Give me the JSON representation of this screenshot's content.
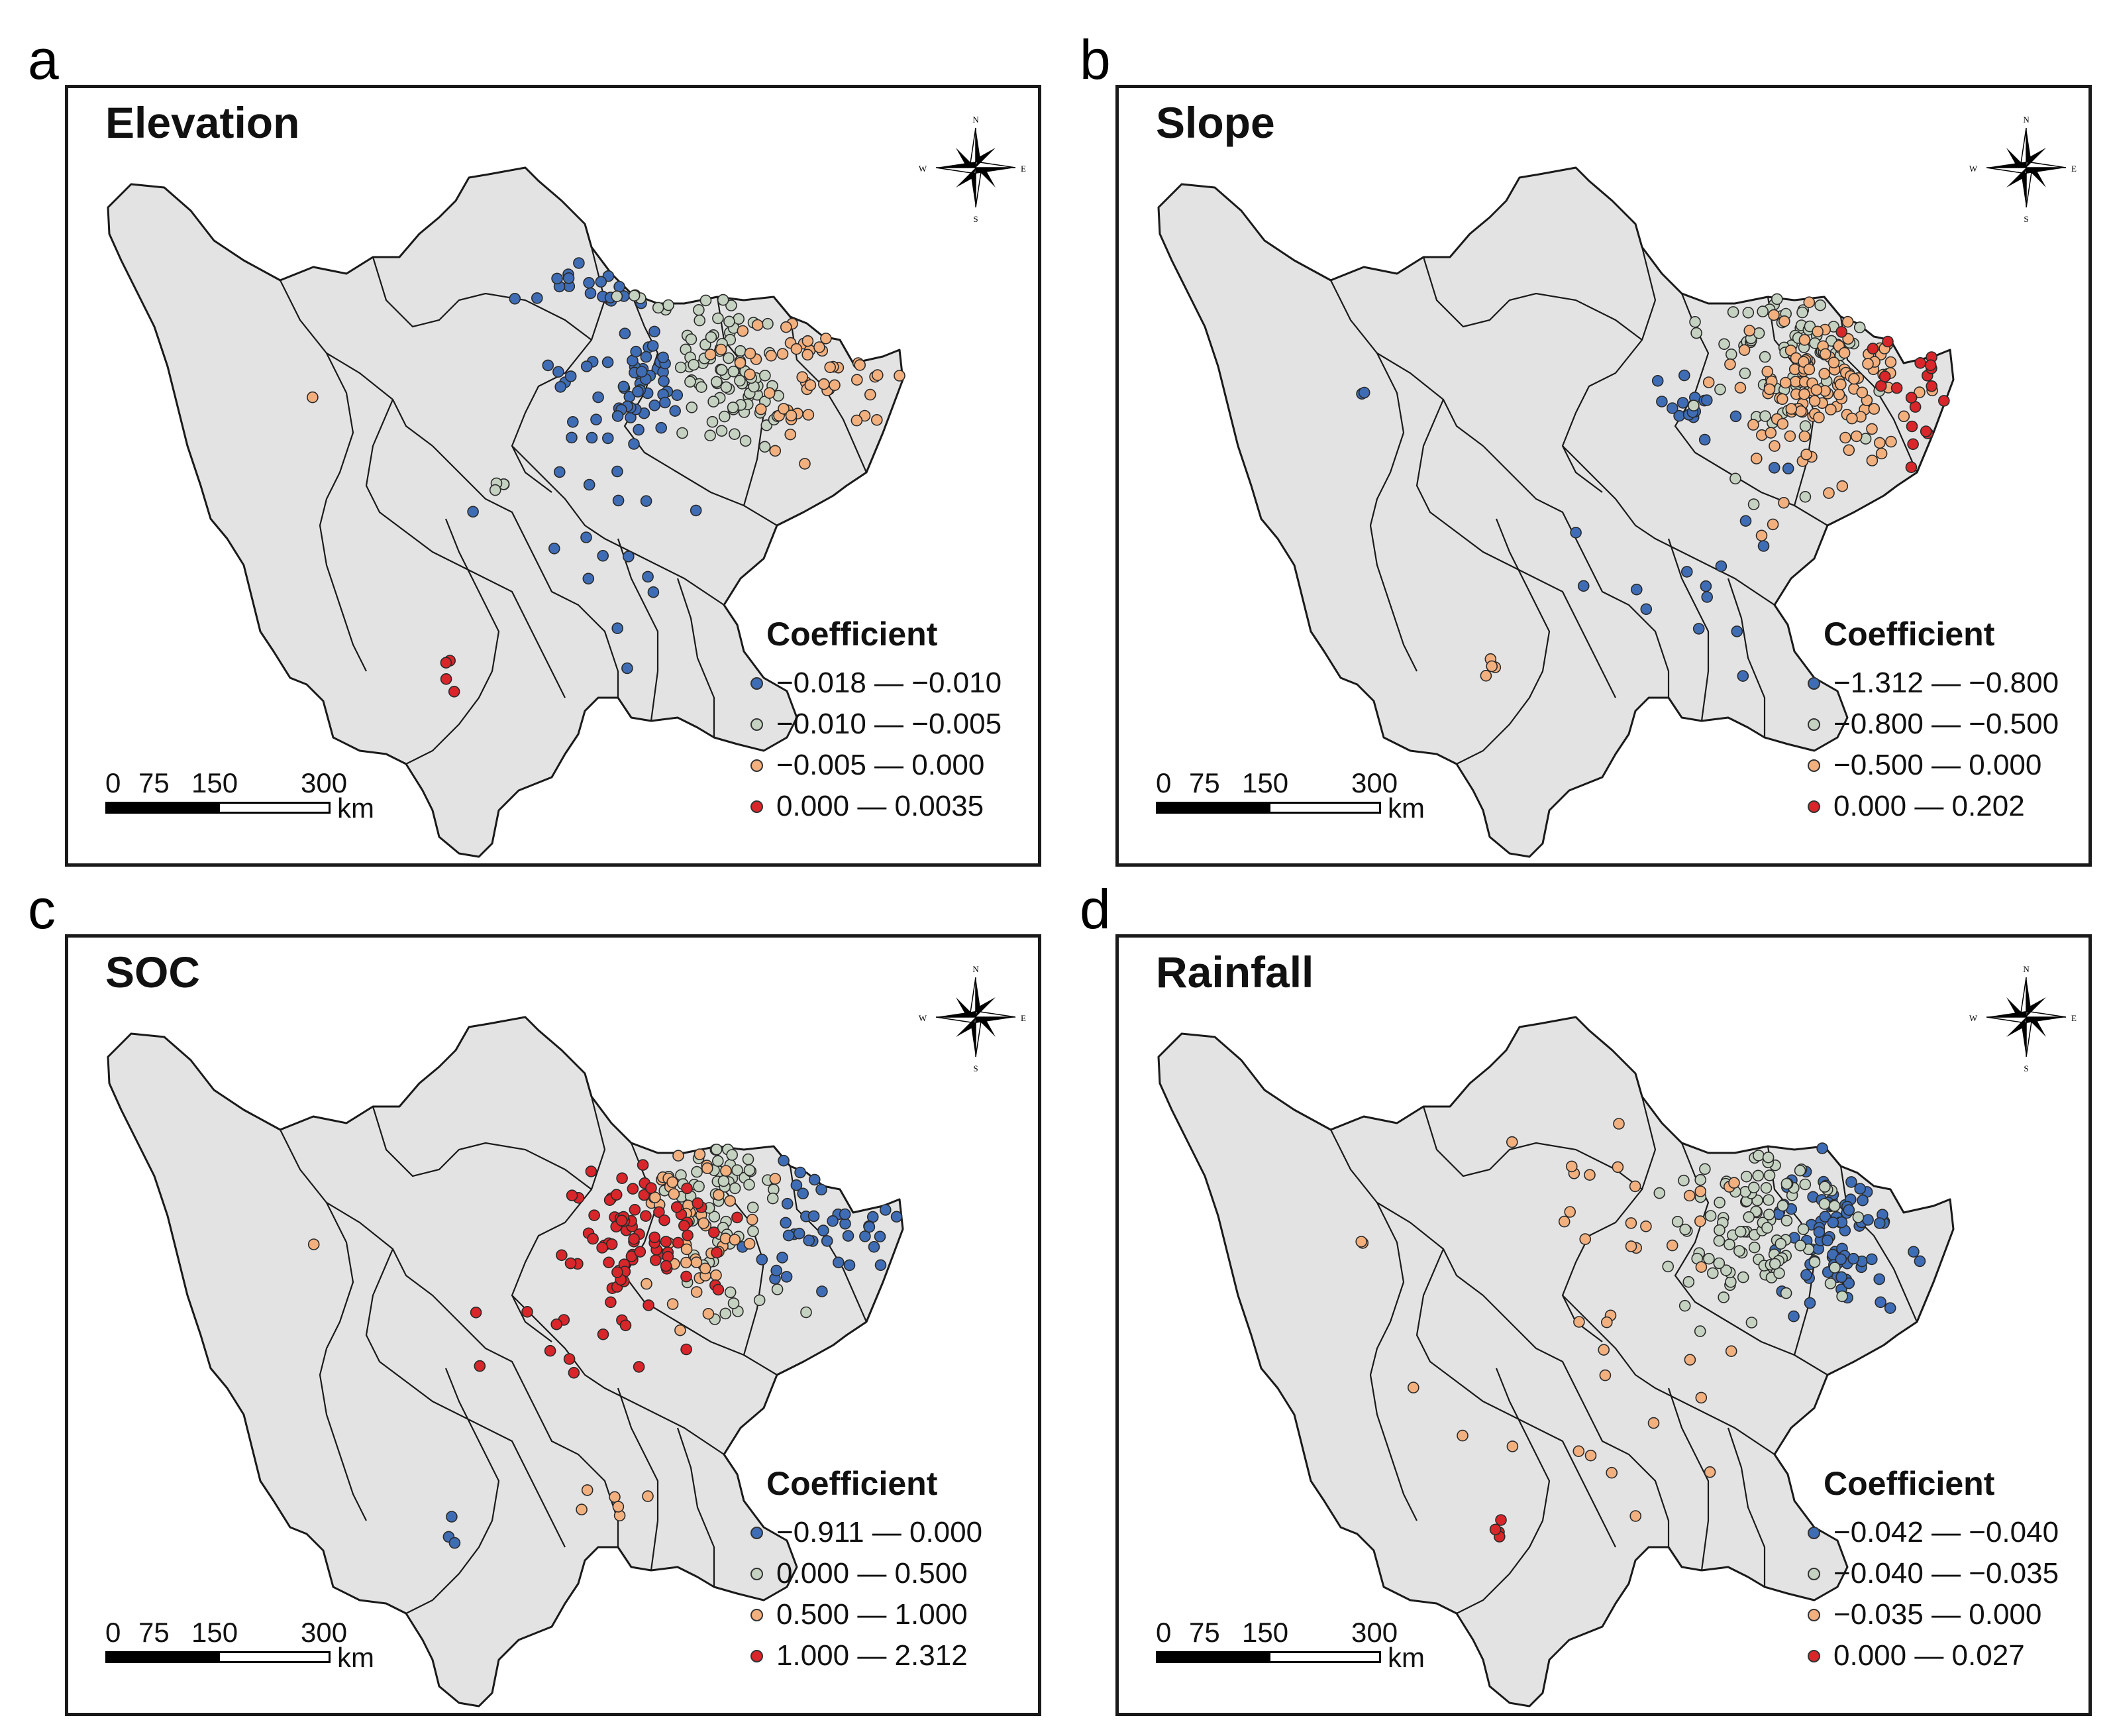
{
  "figure": {
    "panels": [
      {
        "letter": "a",
        "title": "Elevation",
        "legend_title": "Coefficient",
        "legend": [
          {
            "range": "−0.018 — −0.010",
            "color": "#3f6db5"
          },
          {
            "range": "−0.010 — −0.005",
            "color": "#c5d2c1"
          },
          {
            "range": "−0.005 — 0.000",
            "color": "#f3b07f"
          },
          {
            "range": "0.000 — 0.0035",
            "color": "#d8262a"
          }
        ],
        "class_counts": {
          "blue": 95,
          "green": 92,
          "orange": 55,
          "red": 4
        }
      },
      {
        "letter": "b",
        "title": "Slope",
        "legend_title": "Coefficient",
        "legend": [
          {
            "range": "−1.312 — −0.800",
            "color": "#3f6db5"
          },
          {
            "range": "−0.800 — −0.500",
            "color": "#c5d2c1"
          },
          {
            "range": "−0.500 — 0.000",
            "color": "#f3b07f"
          },
          {
            "range": "0.000 — 0.202",
            "color": "#d8262a"
          }
        ],
        "class_counts": {
          "blue": 30,
          "green": 70,
          "orange": 130,
          "red": 20
        }
      },
      {
        "letter": "c",
        "title": "SOC",
        "legend_title": "Coefficient",
        "legend": [
          {
            "range": "−0.911 — 0.000",
            "color": "#3f6db5"
          },
          {
            "range": "0.000 — 0.500",
            "color": "#c5d2c1"
          },
          {
            "range": "0.500 — 1.000",
            "color": "#f3b07f"
          },
          {
            "range": "1.000 — 2.312",
            "color": "#d8262a"
          }
        ],
        "class_counts": {
          "blue": 40,
          "green": 60,
          "orange": 55,
          "red": 90
        }
      },
      {
        "letter": "d",
        "title": "Rainfall",
        "legend_title": "Coefficient",
        "legend": [
          {
            "range": "−0.042 — −0.040",
            "color": "#3f6db5"
          },
          {
            "range": "−0.040 — −0.035",
            "color": "#c5d2c1"
          },
          {
            "range": "−0.035 — 0.000",
            "color": "#f3b07f"
          },
          {
            "range": "0.000 — 0.027",
            "color": "#d8262a"
          }
        ],
        "class_counts": {
          "blue": 85,
          "green": 105,
          "orange": 45,
          "red": 4
        }
      }
    ],
    "scale": {
      "ticks": [
        "0",
        "75",
        "150",
        "300"
      ],
      "unit": "km"
    },
    "compass": {
      "n": "N",
      "s": "S",
      "e": "E",
      "w": "W"
    },
    "colors": {
      "land": "#e3e3e3",
      "boundary": "#1a1a1a"
    }
  }
}
